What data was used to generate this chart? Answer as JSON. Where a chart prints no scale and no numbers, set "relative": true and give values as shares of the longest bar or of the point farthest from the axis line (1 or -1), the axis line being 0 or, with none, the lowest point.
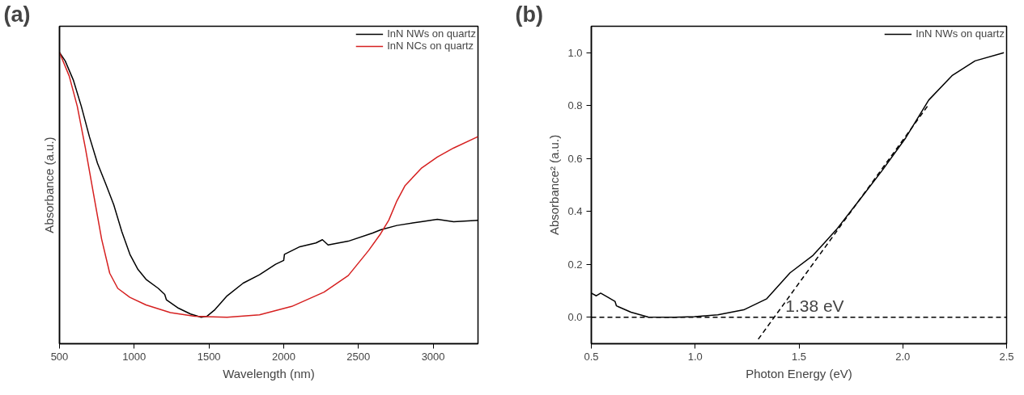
{
  "chart_data": [
    {
      "type": "line",
      "relative": true,
      "xlabel": "Wavelength (nm)",
      "ylabel": "Absorbance (a.u.)",
      "annotations": [
        "(a)"
      ],
      "xlim": [
        500,
        3300
      ],
      "xticks": [
        500,
        1000,
        1500,
        2000,
        2500,
        3000
      ],
      "tick_labels": "x",
      "legend": "top right",
      "series": [
        {
          "name": "InN NWs on quartz",
          "color": "#000000",
          "x": [
            500,
            538,
            592,
            646,
            700,
            754,
            809,
            863,
            917,
            971,
            1025,
            1079,
            1161,
            1204,
            1215,
            1296,
            1377,
            1448,
            1486,
            1540,
            1621,
            1729,
            1838,
            1946,
            2000,
            2005,
            2108,
            2216,
            2259,
            2297,
            2432,
            2595,
            2649,
            2757,
            2920,
            3028,
            3137,
            3300
          ],
          "values": [
            1.0,
            0.971,
            0.906,
            0.815,
            0.711,
            0.62,
            0.549,
            0.477,
            0.385,
            0.307,
            0.255,
            0.221,
            0.19,
            0.169,
            0.151,
            0.122,
            0.102,
            0.091,
            0.094,
            0.117,
            0.164,
            0.208,
            0.237,
            0.273,
            0.286,
            0.307,
            0.333,
            0.346,
            0.357,
            0.339,
            0.352,
            0.38,
            0.391,
            0.406,
            0.419,
            0.427,
            0.419,
            0.424
          ]
        },
        {
          "name": "InN NCs on quartz",
          "color": "#d62020",
          "x": [
            500,
            565,
            619,
            673,
            727,
            782,
            836,
            890,
            971,
            1079,
            1242,
            1404,
            1621,
            1838,
            2054,
            2270,
            2432,
            2568,
            2649,
            2703,
            2757,
            2811,
            2920,
            3028,
            3137,
            3300
          ],
          "values": [
            1.0,
            0.919,
            0.815,
            0.672,
            0.516,
            0.359,
            0.242,
            0.19,
            0.159,
            0.133,
            0.107,
            0.094,
            0.091,
            0.099,
            0.128,
            0.177,
            0.234,
            0.32,
            0.378,
            0.424,
            0.49,
            0.542,
            0.602,
            0.641,
            0.672,
            0.711
          ]
        }
      ]
    },
    {
      "type": "line",
      "xlabel": "Photon Energy (eV)",
      "ylabel": "Absorbance² (a.u.)",
      "annotations": [
        "(b)",
        {
          "text": "1.38 eV",
          "x": 1.38,
          "y": 0
        }
      ],
      "xlim": [
        0.5,
        2.5
      ],
      "xticks": [
        0.5,
        {
          "value": 1,
          "label": "1.0"
        },
        1.5,
        {
          "value": 2,
          "label": "2.0"
        },
        2.5
      ],
      "ylim": [
        -0.1,
        1.1
      ],
      "yticks": [
        {
          "value": 0,
          "label": "0.0"
        },
        0.2,
        0.4,
        0.6,
        0.8,
        {
          "value": 1,
          "label": "1.0"
        }
      ],
      "legend": "top right",
      "ref_lines": [
        {
          "axis": "y",
          "value": 0,
          "color": "#000000",
          "line_style": "dashed"
        }
      ],
      "series": [
        {
          "name": "InN NWs on quartz",
          "color": "#000000",
          "x": [
            0.5,
            0.524,
            0.545,
            0.579,
            0.614,
            0.621,
            0.691,
            0.774,
            0.9,
            0.997,
            1.109,
            1.234,
            1.345,
            1.457,
            1.568,
            1.68,
            1.791,
            1.902,
            2.014,
            2.125,
            2.237,
            2.348,
            2.487
          ],
          "values": [
            0.091,
            0.081,
            0.091,
            0.076,
            0.06,
            0.043,
            0.019,
            0.001,
            0.0,
            0.002,
            0.009,
            0.028,
            0.07,
            0.168,
            0.234,
            0.331,
            0.443,
            0.556,
            0.678,
            0.821,
            0.913,
            0.969,
            1.0
          ]
        },
        {
          "type": "line",
          "color": "#000000",
          "line_style": "dashed",
          "x": [
            1.304,
            2.122
          ],
          "values": [
            -0.083,
            0.801
          ]
        }
      ]
    }
  ]
}
